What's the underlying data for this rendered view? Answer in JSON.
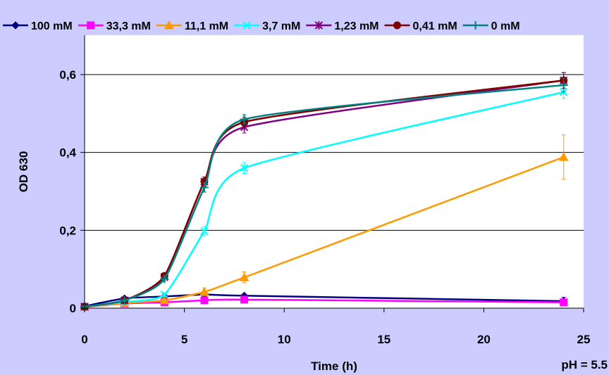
{
  "chart_data": {
    "type": "line",
    "title": "",
    "xlabel": "Time (h)",
    "ylabel": "OD 630",
    "annotation": "pH = 5.5",
    "xlim": [
      0,
      25
    ],
    "ylim": [
      0,
      0.6
    ],
    "x_ticks": [
      0,
      5,
      10,
      15,
      20,
      25
    ],
    "x_tick_labels": [
      "0",
      "5",
      "10",
      "15",
      "20",
      "25"
    ],
    "y_ticks": [
      0,
      0.2,
      0.4,
      0.6
    ],
    "y_tick_labels": [
      "0",
      "0,2",
      "0,4",
      "0,6"
    ],
    "grid": "horizontal",
    "legend_position": "top",
    "x": [
      0,
      2,
      4,
      6,
      8,
      24
    ],
    "series": [
      {
        "name": "100 mM",
        "color": "#000080",
        "marker": "diamond",
        "values": [
          0.005,
          0.025,
          0.03,
          0.035,
          0.032,
          0.018
        ],
        "errors": [
          0.003,
          0.003,
          0.003,
          0.004,
          0.004,
          0.01
        ]
      },
      {
        "name": "33,3 mM",
        "color": "#ff00ff",
        "marker": "square",
        "values": [
          0.003,
          0.012,
          0.015,
          0.02,
          0.022,
          0.015
        ],
        "errors": [
          0.003,
          0.003,
          0.003,
          0.004,
          0.004,
          0.008
        ]
      },
      {
        "name": "11,1 mM",
        "color": "#ff9900",
        "marker": "triangle",
        "values": [
          0.003,
          0.013,
          0.02,
          0.042,
          0.079,
          0.388
        ],
        "errors": [
          0.002,
          0.003,
          0.003,
          0.01,
          0.014,
          0.057
        ]
      },
      {
        "name": "3,7 mM",
        "color": "#00ffff",
        "marker": "x",
        "values": [
          0.004,
          0.016,
          0.035,
          0.198,
          0.36,
          0.555
        ],
        "errors": [
          0.002,
          0.003,
          0.005,
          0.012,
          0.014,
          0.016
        ]
      },
      {
        "name": "1,23 mM",
        "color": "#800080",
        "marker": "star",
        "values": [
          0.004,
          0.02,
          0.08,
          0.325,
          0.465,
          0.585
        ],
        "errors": [
          0.002,
          0.003,
          0.006,
          0.012,
          0.015,
          0.02
        ]
      },
      {
        "name": "0,41 mM",
        "color": "#800000",
        "marker": "circle",
        "values": [
          0.004,
          0.02,
          0.083,
          0.325,
          0.478,
          0.585
        ],
        "errors": [
          0.002,
          0.003,
          0.005,
          0.012,
          0.012,
          0.02
        ]
      },
      {
        "name": "0 mM",
        "color": "#008080",
        "marker": "plus",
        "values": [
          0.004,
          0.02,
          0.075,
          0.31,
          0.485,
          0.573
        ],
        "errors": [
          0.002,
          0.003,
          0.005,
          0.012,
          0.012,
          0.018
        ]
      }
    ]
  }
}
